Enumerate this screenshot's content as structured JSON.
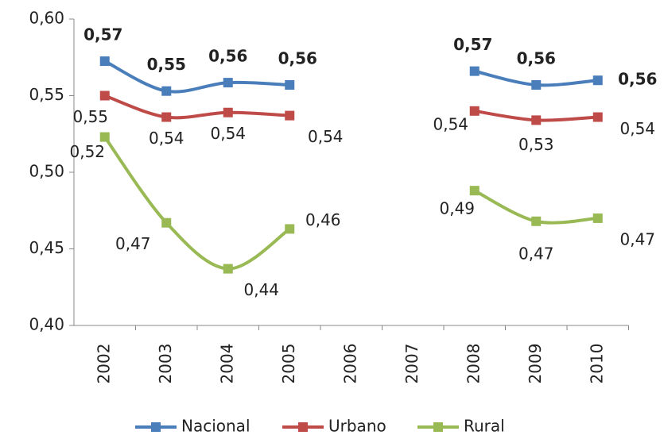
{
  "chart_data": {
    "type": "line",
    "categories": [
      "2002",
      "2003",
      "2004",
      "2005",
      "2006",
      "2007",
      "2008",
      "2009",
      "2010"
    ],
    "ylim": [
      0.4,
      0.6
    ],
    "yticks": [
      {
        "value": 0.4,
        "label": "0,40"
      },
      {
        "value": 0.45,
        "label": "0,45"
      },
      {
        "value": 0.5,
        "label": "0,50"
      },
      {
        "value": 0.55,
        "label": "0,55"
      },
      {
        "value": 0.6,
        "label": "0,60"
      }
    ],
    "grid": false,
    "legend": "bottom",
    "series": [
      {
        "name": "Nacional",
        "color": "#4a7ebb",
        "values": [
          0.5725,
          0.553,
          0.5585,
          0.557,
          null,
          null,
          0.566,
          0.557,
          0.56
        ],
        "value_labels": [
          "0,57",
          "0,55",
          "0,56",
          "0,56",
          null,
          null,
          "0,57",
          "0,56",
          "0,56"
        ]
      },
      {
        "name": "Urbano",
        "color": "#be4b48",
        "values": [
          0.55,
          0.536,
          0.539,
          0.537,
          null,
          null,
          0.54,
          0.534,
          0.536
        ],
        "value_labels": [
          "0,55",
          "0,54",
          "0,54",
          "0,54",
          null,
          null,
          "0,54",
          "0,53",
          "0,54"
        ]
      },
      {
        "name": "Rural",
        "color": "#98b954",
        "values": [
          0.523,
          0.467,
          0.437,
          0.463,
          null,
          null,
          0.488,
          0.468,
          0.47
        ],
        "value_labels": [
          "0,52",
          "0,47",
          "0,44",
          "0,46",
          null,
          null,
          "0,49",
          "0,47",
          "0,47"
        ]
      }
    ]
  }
}
